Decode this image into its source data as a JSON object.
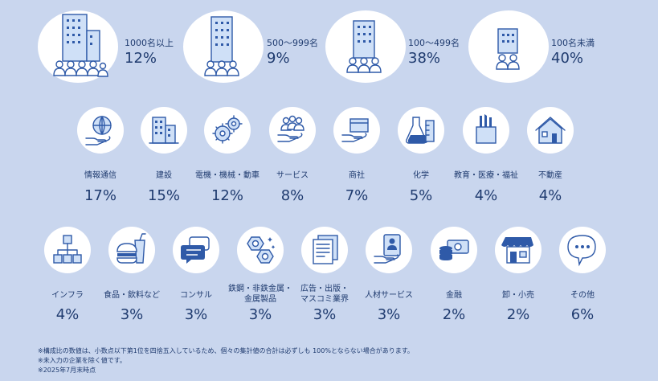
{
  "chart_data": [
    {
      "type": "table",
      "categories": [
        "1000名以上",
        "500〜999名",
        "100〜499名",
        "100名未満"
      ],
      "values": [
        12,
        9,
        38,
        40
      ],
      "value_labels": [
        "12%",
        "9%",
        "38%",
        "40%"
      ]
    },
    {
      "type": "table",
      "categories": [
        "情報通信",
        "建設",
        "電機・機械・動車",
        "サービス",
        "商社",
        "化学",
        "教育・医療・福祉",
        "不動産",
        "インフラ",
        "食品・飲料など",
        "コンサル",
        "鉄鋼・非鉄金属・金属製品",
        "広告・出版・マスコミ業界",
        "人材サービス",
        "金融",
        "卸・小売",
        "その他"
      ],
      "values": [
        17,
        15,
        12,
        8,
        7,
        5,
        4,
        4,
        4,
        3,
        3,
        3,
        3,
        3,
        2,
        2,
        6
      ],
      "value_labels": [
        "17%",
        "15%",
        "12%",
        "8%",
        "7%",
        "5%",
        "4%",
        "4%",
        "4%",
        "3%",
        "3%",
        "3%",
        "3%",
        "3%",
        "2%",
        "2%",
        "6%"
      ]
    }
  ],
  "company_size": [
    {
      "label": "1000名以上",
      "pct": "12%",
      "icon": "large-building-crowd-icon"
    },
    {
      "label": "500〜999名",
      "pct": "9%",
      "icon": "tall-building-crowd-icon"
    },
    {
      "label": "100〜499名",
      "pct": "38%",
      "icon": "medium-building-crowd-icon"
    },
    {
      "label": "100名未満",
      "pct": "40%",
      "icon": "small-building-people-icon"
    }
  ],
  "industry_row1": [
    {
      "label": "情報通信",
      "pct": "17%",
      "icon": "globe-hand-icon"
    },
    {
      "label": "建設",
      "pct": "15%",
      "icon": "buildings-icon"
    },
    {
      "label": "電機・機械・動車",
      "pct": "12%",
      "icon": "gears-icon"
    },
    {
      "label": "サービス",
      "pct": "8%",
      "icon": "people-hand-icon"
    },
    {
      "label": "商社",
      "pct": "7%",
      "icon": "box-hand-icon"
    },
    {
      "label": "化学",
      "pct": "5%",
      "icon": "flask-icon"
    },
    {
      "label": "教育・医療・福祉",
      "pct": "4%",
      "icon": "pencil-cup-icon"
    },
    {
      "label": "不動産",
      "pct": "4%",
      "icon": "house-icon"
    }
  ],
  "industry_row2": [
    {
      "label1": "インフラ",
      "label2": "",
      "pct": "4%",
      "icon": "network-cubes-icon"
    },
    {
      "label1": "食品・飲料など",
      "label2": "",
      "pct": "3%",
      "icon": "burger-drink-icon"
    },
    {
      "label1": "コンサル",
      "label2": "",
      "pct": "3%",
      "icon": "chat-bubbles-icon"
    },
    {
      "label1": "鉄鋼・非鉄金属・",
      "label2": "金属製品",
      "pct": "3%",
      "icon": "nuts-bolts-icon"
    },
    {
      "label1": "広告・出版・",
      "label2": "マスコミ業界",
      "pct": "3%",
      "icon": "documents-icon"
    },
    {
      "label1": "人材サービス",
      "label2": "",
      "pct": "3%",
      "icon": "profile-card-hand-icon"
    },
    {
      "label1": "金融",
      "label2": "",
      "pct": "2%",
      "icon": "coins-bill-icon"
    },
    {
      "label1": "卸・小売",
      "label2": "",
      "pct": "2%",
      "icon": "storefront-icon"
    },
    {
      "label1": "その他",
      "label2": "",
      "pct": "6%",
      "icon": "speech-bubble-dots-icon"
    }
  ],
  "notes": [
    "※構成比の数値は、小数点以下第1位を四捨五入しているため、個々の集計値の合計は必ずしも 100%とならない場合があります。",
    "※未入力の企業を除く値です。",
    "※2025年7月末時点"
  ]
}
